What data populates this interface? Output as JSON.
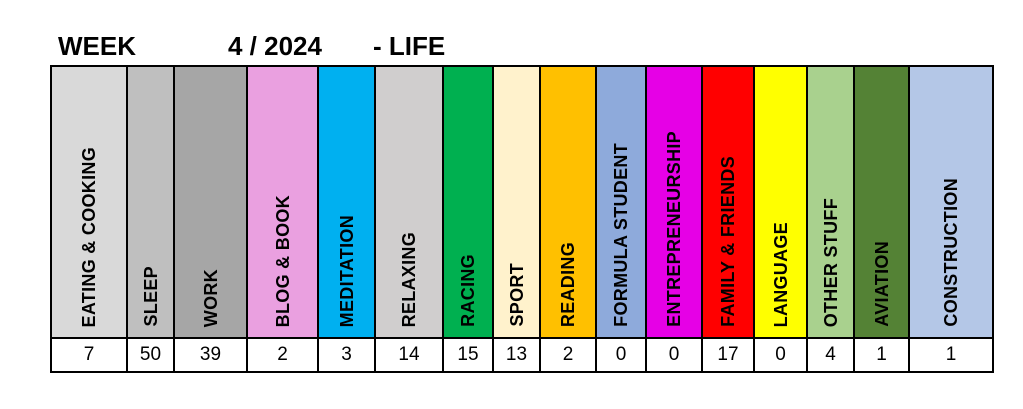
{
  "header": {
    "week": "WEEK",
    "period": "4 / 2024",
    "label": "- LIFE"
  },
  "categories": [
    {
      "label": "EATING & COOKING",
      "value": "7",
      "color": "#d9d9d9"
    },
    {
      "label": "SLEEP",
      "value": "50",
      "color": "#bfbfbf"
    },
    {
      "label": "WORK",
      "value": "39",
      "color": "#a6a6a6"
    },
    {
      "label": "BLOG & BOOK",
      "value": "2",
      "color": "#eaa0e0"
    },
    {
      "label": "MEDITATION",
      "value": "3",
      "color": "#00b0f0"
    },
    {
      "label": "RELAXING",
      "value": "14",
      "color": "#d0cece"
    },
    {
      "label": "RACING",
      "value": "15",
      "color": "#00b050"
    },
    {
      "label": "SPORT",
      "value": "13",
      "color": "#fff2cc"
    },
    {
      "label": "READING",
      "value": "2",
      "color": "#ffc000"
    },
    {
      "label": "FORMULA STUDENT",
      "value": "0",
      "color": "#8eaadb"
    },
    {
      "label": "ENTREPRENEURSHIP",
      "value": "0",
      "color": "#e600e6"
    },
    {
      "label": "FAMILY & FRIENDS",
      "value": "17",
      "color": "#ff0000"
    },
    {
      "label": "LANGUAGE",
      "value": "0",
      "color": "#ffff00"
    },
    {
      "label": "OTHER STUFF",
      "value": "4",
      "color": "#a9d18e"
    },
    {
      "label": "AVIATION",
      "value": "1",
      "color": "#548235"
    },
    {
      "label": "CONSTRUCTION",
      "value": "1",
      "color": "#b4c7e7"
    }
  ]
}
